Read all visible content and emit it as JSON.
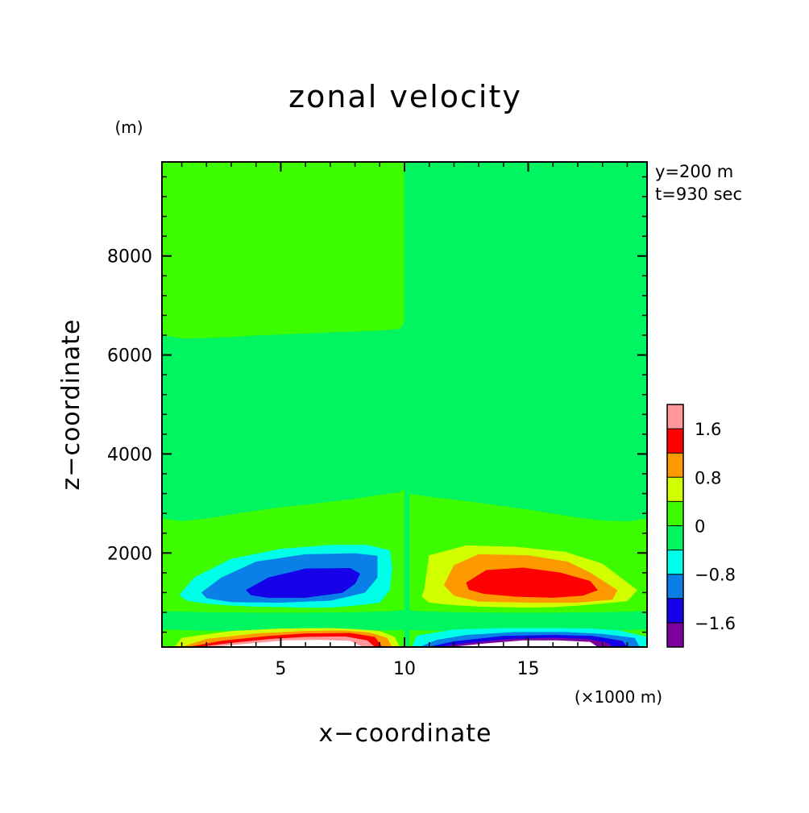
{
  "chart_data": {
    "type": "heatmap",
    "title": "zonal velocity",
    "xlabel": "x−coordinate",
    "ylabel": "z−coordinate",
    "x_unit": "(×1000 m)",
    "y_unit": "(m)",
    "annotations": [
      "y=200 m",
      "t=930 sec"
    ],
    "xlim": [
      0.2,
      19.8
    ],
    "ylim": [
      100,
      9900
    ],
    "x_ticks": [
      5,
      10,
      15
    ],
    "y_ticks": [
      2000,
      4000,
      6000,
      8000
    ],
    "x_minor_step": 1,
    "y_minor_step": 400,
    "colorbar": {
      "levels": [
        -2.4,
        -2.0,
        -1.6,
        -1.2,
        -0.8,
        -0.4,
        0,
        0.4,
        0.8,
        1.2,
        1.6,
        2.0,
        2.4
      ],
      "colors": [
        "#7c00a0",
        "#1500e8",
        "#0b7fe8",
        "#00ffe8",
        "#00f560",
        "#3efc00",
        "#d2ff00",
        "#ff9900",
        "#ff0000",
        "#ff9999"
      ],
      "tick_labels": [
        "−1.6",
        "−0.8",
        "0",
        "0.8",
        "1.6"
      ],
      "tick_values": [
        -1.6,
        -0.8,
        0,
        0.8,
        1.6
      ],
      "colorbar_range": [
        -2.0,
        2.0
      ],
      "out_of_range_color": "#ffffff"
    },
    "background_level_color": "#3efc00",
    "regions": [
      {
        "value": 0.0,
        "color": "#00f560",
        "x": [
          10,
          10.2,
          11,
          12,
          13,
          14,
          15,
          16,
          17,
          18,
          19,
          19.8,
          19.8,
          19,
          18,
          17,
          16,
          15,
          14,
          13,
          12,
          11,
          10.2,
          10
        ],
        "z": [
          9900,
          9900,
          9900,
          9900,
          9900,
          9900,
          9900,
          9900,
          9900,
          9900,
          9900,
          9900,
          6400,
          6400,
          6420,
          6440,
          6460,
          6480,
          6500,
          6510,
          6520,
          6530,
          6560,
          6650
        ]
      },
      {
        "value": 0.0,
        "color": "#00f560",
        "x": [
          0.2,
          1,
          2,
          3,
          4,
          5,
          6,
          7,
          8,
          9,
          9.8,
          10,
          10,
          9.8,
          9,
          8,
          7,
          6,
          5,
          4,
          3,
          2,
          1,
          0.2
        ],
        "z": [
          6400,
          6330,
          6340,
          6360,
          6390,
          6410,
          6430,
          6450,
          6470,
          6490,
          6520,
          6650,
          3300,
          3230,
          3180,
          3100,
          3040,
          2980,
          2930,
          2860,
          2780,
          2700,
          2650,
          2700
        ]
      },
      {
        "value": 0.0,
        "color": "#00f560",
        "x": [
          10,
          10.2,
          11,
          12,
          13,
          14,
          15,
          16,
          17,
          18,
          19,
          19.8,
          19.8,
          19,
          18,
          17,
          16,
          15,
          14,
          13,
          12,
          11,
          10.2,
          10
        ],
        "z": [
          6650,
          6560,
          6530,
          6520,
          6510,
          6500,
          6480,
          6460,
          6440,
          6420,
          6400,
          6400,
          2700,
          2640,
          2660,
          2720,
          2800,
          2880,
          2950,
          3020,
          3080,
          3140,
          3200,
          3300
        ]
      },
      {
        "value": 0.0,
        "color": "#00f560",
        "x": [
          0.2,
          2,
          4,
          6,
          8,
          9.5,
          10,
          10,
          9.5,
          8,
          6,
          4,
          2,
          0.2
        ],
        "z": [
          460,
          430,
          420,
          420,
          430,
          440,
          450,
          850,
          820,
          800,
          790,
          790,
          800,
          820
        ]
      },
      {
        "value": 0.0,
        "color": "#00f560",
        "x": [
          10,
          10.5,
          12,
          14,
          16,
          18,
          19.8,
          19.8,
          18,
          16,
          14,
          12,
          10.5,
          10
        ],
        "z": [
          450,
          440,
          430,
          420,
          420,
          430,
          460,
          820,
          800,
          790,
          790,
          800,
          820,
          850
        ]
      },
      {
        "value": 0.0,
        "color": "#00f560",
        "x": [
          10,
          10.2,
          10.2,
          10
        ],
        "z": [
          100,
          100,
          9900,
          9900
        ]
      },
      {
        "value": -0.4,
        "color": "#00ffe8",
        "x": [
          0.9,
          1.5,
          3,
          5,
          7,
          8.5,
          9.4,
          9.5,
          9.4,
          9,
          8,
          7,
          6,
          5,
          4,
          3,
          2,
          1.2
        ],
        "z": [
          1150,
          1500,
          1880,
          2080,
          2160,
          2160,
          2050,
          1700,
          1250,
          1000,
          940,
          900,
          900,
          910,
          920,
          940,
          980,
          1040
        ]
      },
      {
        "value": -0.8,
        "color": "#0b7fe8",
        "x": [
          1.8,
          2.6,
          4,
          6,
          8,
          8.9,
          8.9,
          8.4,
          7,
          5,
          3,
          2
        ],
        "z": [
          1200,
          1500,
          1820,
          1970,
          1990,
          1940,
          1500,
          1200,
          1040,
          1000,
          1010,
          1090
        ]
      },
      {
        "value": -1.2,
        "color": "#1500e8",
        "x": [
          3.6,
          4.5,
          6,
          7.8,
          8.2,
          8.0,
          7.5,
          6,
          4.5,
          3.8
        ],
        "z": [
          1250,
          1500,
          1680,
          1690,
          1580,
          1380,
          1200,
          1100,
          1100,
          1150
        ]
      },
      {
        "value": 0.4,
        "color": "#d2ff00",
        "x": [
          10.8,
          11.0,
          12.5,
          14.5,
          16.5,
          18,
          19.4,
          19.0,
          18,
          17,
          16,
          15,
          14,
          13,
          12,
          11,
          10.7
        ],
        "z": [
          1250,
          1950,
          2150,
          2120,
          2020,
          1780,
          1250,
          1030,
          980,
          940,
          910,
          900,
          910,
          920,
          950,
          1000,
          1120
        ]
      },
      {
        "value": 0.8,
        "color": "#ff9900",
        "x": [
          11.6,
          12.0,
          13,
          15,
          16.6,
          17.5,
          18.6,
          18.4,
          17,
          15,
          13,
          12
        ],
        "z": [
          1350,
          1750,
          1970,
          1950,
          1820,
          1600,
          1250,
          1060,
          1000,
          1000,
          1020,
          1140
        ]
      },
      {
        "value": 1.2,
        "color": "#ff0000",
        "x": [
          12.5,
          13.3,
          14.8,
          16.3,
          17.5,
          17.8,
          17.2,
          16,
          14.5,
          13.2,
          12.6
        ],
        "z": [
          1400,
          1650,
          1700,
          1600,
          1430,
          1250,
          1140,
          1100,
          1120,
          1180,
          1260
        ]
      },
      {
        "value": 0.4,
        "color": "#d2ff00",
        "x": [
          0.7,
          1,
          3,
          5,
          7,
          8,
          9,
          9.6,
          9.8,
          0.7
        ],
        "z": [
          100,
          280,
          420,
          470,
          480,
          460,
          420,
          300,
          100,
          100
        ]
      },
      {
        "value": 0.8,
        "color": "#ff9900",
        "x": [
          1.0,
          2,
          4,
          6,
          7.5,
          8.6,
          9.3,
          9.5,
          1.0
        ],
        "z": [
          100,
          260,
          370,
          420,
          430,
          390,
          280,
          100,
          100
        ]
      },
      {
        "value": 1.2,
        "color": "#ff0000",
        "x": [
          1.3,
          2.6,
          4.5,
          6,
          7.8,
          8.8,
          9.1,
          1.3
        ],
        "z": [
          100,
          220,
          320,
          370,
          380,
          300,
          100,
          100
        ]
      },
      {
        "value": 1.6,
        "color": "#ff9999",
        "x": [
          1.7,
          3,
          4.6,
          6,
          7.6,
          8.5,
          8.8,
          1.7
        ],
        "z": [
          100,
          180,
          260,
          300,
          310,
          230,
          100,
          100
        ]
      },
      {
        "value": 2.0,
        "color": "#ffffff",
        "x": [
          2.2,
          3.8,
          5.2,
          6.6,
          7.8,
          8.3,
          2.2
        ],
        "z": [
          100,
          170,
          230,
          240,
          220,
          100,
          100
        ]
      },
      {
        "value": -0.4,
        "color": "#00ffe8",
        "x": [
          10.3,
          10.5,
          12,
          14,
          16,
          17.5,
          18.7,
          19.8,
          19.8,
          10.3
        ],
        "z": [
          100,
          330,
          450,
          480,
          480,
          470,
          430,
          300,
          100,
          100
        ]
      },
      {
        "value": -0.8,
        "color": "#0b7fe8",
        "x": [
          10.6,
          11.3,
          12.5,
          14.5,
          16.5,
          18,
          19.3,
          19.5,
          10.6
        ],
        "z": [
          100,
          240,
          340,
          400,
          400,
          360,
          280,
          100,
          100
        ]
      },
      {
        "value": -1.2,
        "color": "#1500e8",
        "x": [
          11.0,
          12.0,
          14,
          16,
          17.6,
          18.8,
          19.0,
          11.0
        ],
        "z": [
          100,
          210,
          320,
          340,
          320,
          220,
          100,
          100
        ]
      },
      {
        "value": -1.6,
        "color": "#7c00a0",
        "x": [
          11.4,
          12.6,
          14.3,
          16,
          17.4,
          18.2,
          18.4,
          11.4
        ],
        "z": [
          100,
          180,
          260,
          280,
          260,
          180,
          100,
          100
        ]
      },
      {
        "value": -2.0,
        "color": "#ffffff",
        "x": [
          11.9,
          13.3,
          14.8,
          16.2,
          17.5,
          17.8,
          11.9
        ],
        "z": [
          100,
          170,
          230,
          230,
          200,
          100,
          100
        ]
      }
    ]
  }
}
